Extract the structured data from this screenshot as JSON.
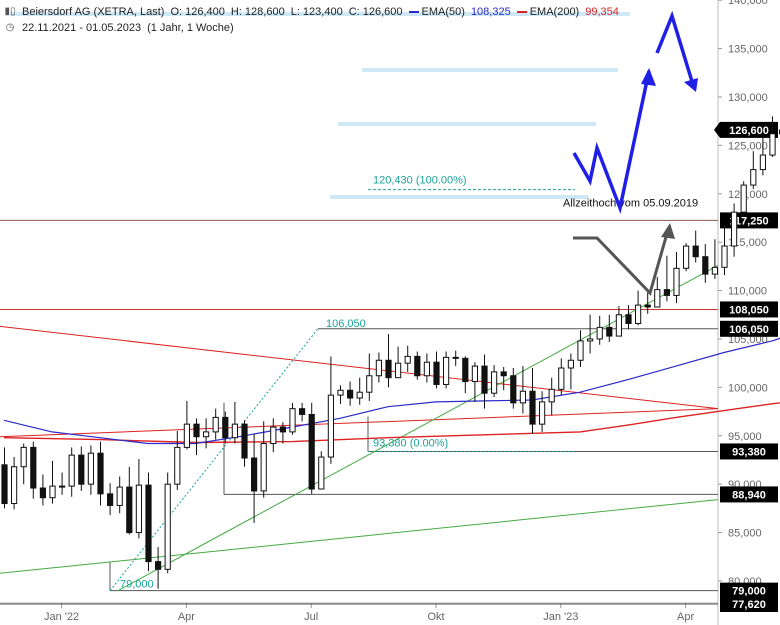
{
  "header": {
    "icon": "candlestick-icon",
    "instrument": "Beiersdorf AG (XETRA, Last)",
    "open": "O: 126,400",
    "high": "H: 128,600",
    "low": "L: 123,400",
    "close": "C: 126,600",
    "ema50_label": "EMA(50)",
    "ema50_value": "108,325",
    "ema200_label": "EMA(200)",
    "ema200_value": "99,354",
    "clock_icon": "clock-icon",
    "range": "22.11.2021 - 01.05.2023",
    "interval": "(1 Jahr, 1 Woche)",
    "colors": {
      "ema50": "#2b2bcc",
      "ema200": "#dd2222",
      "up": "#ffffff",
      "down": "#111111"
    }
  },
  "chart_data": {
    "type": "candlestick",
    "ylim": [
      77,
      141
    ],
    "y_ticks": [
      80,
      85,
      90,
      95,
      100,
      105,
      110,
      115,
      120,
      125,
      130,
      135,
      140
    ],
    "y_tick_labels": [
      "80,000",
      "85,000",
      "90,000",
      "95,000",
      "100,000",
      "105,000",
      "110,000",
      "115,000",
      "120,000",
      "125,000",
      "130,000",
      "135,000",
      "140,000"
    ],
    "x_labels": [
      {
        "label": "Jan '22",
        "week": 6
      },
      {
        "label": "Apr",
        "week": 19
      },
      {
        "label": "Jul",
        "week": 32
      },
      {
        "label": "Okt",
        "week": 45
      },
      {
        "label": "Jan '23",
        "week": 58
      },
      {
        "label": "Apr",
        "week": 71
      }
    ],
    "weeks_total": 96,
    "candles": [
      [
        92.0,
        88.0,
        93.8,
        87.5
      ],
      [
        88.0,
        91.8,
        92.8,
        87.4
      ],
      [
        91.8,
        93.8,
        94.2,
        90.0
      ],
      [
        93.8,
        89.6,
        94.4,
        88.5
      ],
      [
        89.6,
        88.6,
        91.0,
        87.8
      ],
      [
        88.6,
        89.8,
        92.4,
        88.0
      ],
      [
        89.8,
        89.8,
        91.2,
        88.9
      ],
      [
        89.8,
        93.0,
        93.8,
        88.7
      ],
      [
        93.0,
        90.0,
        93.9,
        89.3
      ],
      [
        90.0,
        93.2,
        94.0,
        88.9
      ],
      [
        93.2,
        89.0,
        94.4,
        87.8
      ],
      [
        89.0,
        87.8,
        90.1,
        86.8
      ],
      [
        87.8,
        89.7,
        90.8,
        87.0
      ],
      [
        89.7,
        85.0,
        91.8,
        84.8
      ],
      [
        85.0,
        89.9,
        92.6,
        84.4
      ],
      [
        89.9,
        82.0,
        91.2,
        81.0
      ],
      [
        82.0,
        81.2,
        83.5,
        79.2
      ],
      [
        81.2,
        90.0,
        91.2,
        80.8
      ],
      [
        90.0,
        93.8,
        95.5,
        89.4
      ],
      [
        93.8,
        96.2,
        98.6,
        93.6
      ],
      [
        96.2,
        94.9,
        96.8,
        93.0
      ],
      [
        94.9,
        95.4,
        96.8,
        93.7
      ],
      [
        95.4,
        96.9,
        97.8,
        94.6
      ],
      [
        96.9,
        94.8,
        97.5,
        94.2
      ],
      [
        94.8,
        96.2,
        98.5,
        94.2
      ],
      [
        96.2,
        92.7,
        96.6,
        91.8
      ],
      [
        92.7,
        89.3,
        95.2,
        86.0
      ],
      [
        89.3,
        94.2,
        96.5,
        88.6
      ],
      [
        94.2,
        95.9,
        96.8,
        93.3
      ],
      [
        95.9,
        95.4,
        96.4,
        94.2
      ],
      [
        95.4,
        97.8,
        98.4,
        95.1
      ],
      [
        97.8,
        97.2,
        98.4,
        96.5
      ],
      [
        97.2,
        89.5,
        98.4,
        89.0
      ],
      [
        89.5,
        92.8,
        93.4,
        89.5
      ],
      [
        92.8,
        99.2,
        103.2,
        92.1
      ],
      [
        99.2,
        99.7,
        100.2,
        98.3
      ],
      [
        99.7,
        98.9,
        100.6,
        98.1
      ],
      [
        98.9,
        99.5,
        101.0,
        98.2
      ],
      [
        99.5,
        101.2,
        103.5,
        98.6
      ],
      [
        101.2,
        102.8,
        103.6,
        100.5
      ],
      [
        102.8,
        101.0,
        105.5,
        100.0
      ],
      [
        101.0,
        102.5,
        104.2,
        101.5
      ],
      [
        102.5,
        103.2,
        104.3,
        101.6
      ],
      [
        103.2,
        101.2,
        103.7,
        100.8
      ],
      [
        101.2,
        102.6,
        103.5,
        100.5
      ],
      [
        102.6,
        100.3,
        103.7,
        99.9
      ],
      [
        100.3,
        103.1,
        103.7,
        99.9
      ],
      [
        103.1,
        103.0,
        103.8,
        102.2
      ],
      [
        103.0,
        100.6,
        103.2,
        99.4
      ],
      [
        100.6,
        102.2,
        102.6,
        98.5
      ],
      [
        102.2,
        99.4,
        103.4,
        97.8
      ],
      [
        99.4,
        101.6,
        102.3,
        99.0
      ],
      [
        101.6,
        101.2,
        102.1,
        99.7
      ],
      [
        101.2,
        98.4,
        102.0,
        97.8
      ],
      [
        98.4,
        99.6,
        102.2,
        97.3
      ],
      [
        99.6,
        96.2,
        102.0,
        95.2
      ],
      [
        96.2,
        98.5,
        99.6,
        95.4
      ],
      [
        98.5,
        99.8,
        101.0,
        97.1
      ],
      [
        99.8,
        102.0,
        103.0,
        99.2
      ],
      [
        102.0,
        102.8,
        103.5,
        99.8
      ],
      [
        102.8,
        104.8,
        105.9,
        102.1
      ],
      [
        104.8,
        105.0,
        107.5,
        103.5
      ],
      [
        105.0,
        106.2,
        107.4,
        104.4
      ],
      [
        106.2,
        105.3,
        107.5,
        104.7
      ],
      [
        105.3,
        107.5,
        108.4,
        105.5
      ],
      [
        107.5,
        106.6,
        108.5,
        106.0
      ],
      [
        106.6,
        108.5,
        110.0,
        106.4
      ],
      [
        108.5,
        108.3,
        110.1,
        107.6
      ],
      [
        108.3,
        110.1,
        111.4,
        108.6
      ],
      [
        110.1,
        109.5,
        113.6,
        108.9
      ],
      [
        109.5,
        112.3,
        114.0,
        108.7
      ],
      [
        112.3,
        114.6,
        114.9,
        112.0
      ],
      [
        114.6,
        113.5,
        116.2,
        112.9
      ],
      [
        113.5,
        111.7,
        114.8,
        110.8
      ],
      [
        111.7,
        112.4,
        115.3,
        111.2
      ],
      [
        112.4,
        114.6,
        116.8,
        111.6
      ],
      [
        114.6,
        118.1,
        119.0,
        113.5
      ],
      [
        118.1,
        120.9,
        121.3,
        117.6
      ],
      [
        120.9,
        122.5,
        124.4,
        120.5
      ],
      [
        122.5,
        124.0,
        126.1,
        121.9
      ],
      [
        124.0,
        126.2,
        128.0,
        123.8
      ],
      [
        126.2,
        126.6,
        128.6,
        123.4
      ]
    ],
    "ema50": [
      [
        0,
        96.6
      ],
      [
        5,
        95.4
      ],
      [
        10,
        94.8
      ],
      [
        15,
        94.2
      ],
      [
        20,
        94.2
      ],
      [
        25,
        95.0
      ],
      [
        30,
        95.9
      ],
      [
        35,
        96.8
      ],
      [
        40,
        98.0
      ],
      [
        45,
        98.5
      ],
      [
        50,
        98.6
      ],
      [
        55,
        98.7
      ],
      [
        60,
        99.5
      ],
      [
        65,
        100.8
      ],
      [
        70,
        102.2
      ],
      [
        75,
        103.6
      ],
      [
        80,
        104.8
      ],
      [
        85,
        106.4
      ],
      [
        90,
        107.7
      ],
      [
        93,
        108.3
      ]
    ],
    "ema200": [
      [
        0,
        94.8
      ],
      [
        10,
        94.6
      ],
      [
        20,
        94.3
      ],
      [
        30,
        94.4
      ],
      [
        40,
        94.8
      ],
      [
        50,
        95.1
      ],
      [
        60,
        95.4
      ],
      [
        65,
        96.1
      ],
      [
        70,
        96.9
      ],
      [
        75,
        97.6
      ],
      [
        80,
        98.3
      ],
      [
        85,
        98.9
      ],
      [
        90,
        99.2
      ],
      [
        93,
        99.35
      ]
    ],
    "hlines": [
      {
        "label": "117,250",
        "value": 117.25,
        "color": "#8b5a4a",
        "badge": "#000000"
      },
      {
        "label": "108,050",
        "value": 108.05,
        "color": "#cc3333",
        "badge": "#000000"
      },
      {
        "label": "106,050",
        "value": 106.05,
        "color": "#555555",
        "badge": "#000000"
      },
      {
        "label": "93,380",
        "value": 93.38,
        "color": "#555555",
        "badge": "#000000"
      },
      {
        "label": "88,940",
        "value": 88.94,
        "color": "#555555",
        "badge": "#000000"
      },
      {
        "label": "79,000",
        "value": 79.0,
        "color": "#555555",
        "badge": "#000000"
      },
      {
        "label": "77,620",
        "value": 77.62,
        "color": "#555555",
        "badge": "#000000"
      }
    ],
    "last_price_label": "126,600",
    "annotations": {
      "fib_top_label": "120,430 (100.00%)",
      "fib_bottom_label": "93,380 (0.00%)",
      "swing_high_label": "106,050",
      "swing_low_label": "79,000",
      "ath_label": "Allzeithoch vom 05.09.2019"
    }
  }
}
